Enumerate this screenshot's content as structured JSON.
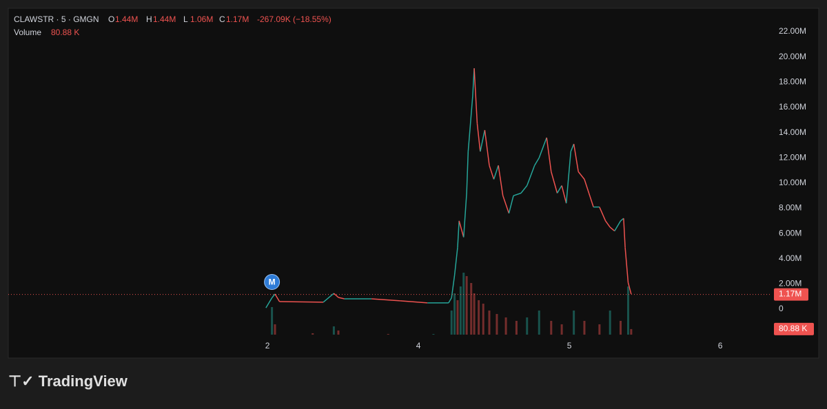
{
  "chart_data": {
    "type": "line",
    "header": {
      "symbol": "CLAWSTR · 5 · GMGN",
      "o_key": "O",
      "open": "1.44M",
      "h_key": "H",
      "high": "1.44M",
      "l_key": "L",
      "low": "1.06M",
      "c_key": "C",
      "close": "1.17M",
      "change": "-267.09K (−18.55%)",
      "volume_key": "Volume",
      "volume": "80.88 K"
    },
    "x": [
      -0.01,
      0.03,
      0.05,
      0.08,
      0.37,
      0.44,
      0.47,
      0.51,
      0.69,
      0.88,
      1.06,
      1.2,
      1.22,
      1.24,
      1.26,
      1.27,
      1.3,
      1.32,
      1.33,
      1.36,
      1.37,
      1.39,
      1.41,
      1.44,
      1.47,
      1.5,
      1.53,
      1.56,
      1.6,
      1.63,
      1.68,
      1.72,
      1.77,
      1.8,
      1.85,
      1.88,
      1.92,
      1.95,
      1.98,
      2.01,
      2.03,
      2.06,
      2.1,
      2.13,
      2.16,
      2.2,
      2.24,
      2.27,
      2.3,
      2.34,
      2.36,
      2.37,
      2.39,
      2.41
    ],
    "values": [
      0.1,
      0.9,
      1.2,
      0.6,
      0.55,
      1.25,
      0.93,
      0.82,
      0.82,
      0.66,
      0.5,
      0.5,
      0.9,
      2.7,
      4.9,
      7.0,
      5.7,
      9.2,
      12.5,
      16.9,
      19.1,
      14.7,
      12.5,
      14.2,
      11.4,
      10.3,
      11.4,
      9.0,
      7.6,
      9.0,
      9.2,
      9.8,
      11.4,
      12.0,
      13.6,
      10.9,
      9.2,
      9.8,
      8.4,
      12.5,
      13.1,
      10.9,
      10.3,
      9.2,
      8.1,
      8.1,
      7.0,
      6.5,
      6.2,
      7.0,
      7.2,
      4.9,
      2.1,
      1.2
    ],
    "up_color": "#26a69a",
    "down_color": "#ef5350",
    "volume_series": {
      "x": [
        0.03,
        0.05,
        0.3,
        0.44,
        0.47,
        0.8,
        1.1,
        1.22,
        1.24,
        1.26,
        1.28,
        1.3,
        1.32,
        1.35,
        1.37,
        1.4,
        1.43,
        1.47,
        1.52,
        1.58,
        1.65,
        1.72,
        1.8,
        1.88,
        1.95,
        2.03,
        2.1,
        2.2,
        2.27,
        2.34,
        2.39,
        2.41
      ],
      "values": [
        400,
        150,
        20,
        120,
        60,
        10,
        10,
        350,
        600,
        500,
        700,
        900,
        850,
        750,
        600,
        500,
        450,
        350,
        300,
        250,
        200,
        250,
        350,
        200,
        150,
        350,
        200,
        150,
        350,
        200,
        700,
        80.88
      ],
      "ylim": [
        0,
        900
      ]
    },
    "last_price": {
      "value": 1.17,
      "label": "1.17M"
    },
    "last_volume": {
      "value": 80.88,
      "label": "80.88 K"
    },
    "marker": "M",
    "xlim": [
      -1.717,
      3.333
    ],
    "xticks": [
      {
        "value": 0,
        "label": "2"
      },
      {
        "value": 1,
        "label": "4"
      },
      {
        "value": 2,
        "label": "5"
      },
      {
        "value": 3,
        "label": "6"
      }
    ],
    "ylim": [
      -2.02,
      23.86
    ],
    "yticks": [
      0,
      {
        "value": 2,
        "label": "2.00M"
      },
      {
        "value": 4,
        "label": "4.00M"
      },
      {
        "value": 6,
        "label": "6.00M"
      },
      {
        "value": 8,
        "label": "8.00M"
      },
      {
        "value": 10,
        "label": "10.00M"
      },
      {
        "value": 12,
        "label": "12.00M"
      },
      {
        "value": 14,
        "label": "14.00M"
      },
      {
        "value": 16,
        "label": "16.00M"
      },
      {
        "value": 18,
        "label": "18.00M"
      },
      {
        "value": 20,
        "label": "20.00M"
      },
      {
        "value": 22,
        "label": "22.00M"
      }
    ],
    "grid": false,
    "brand": "TradingView"
  }
}
